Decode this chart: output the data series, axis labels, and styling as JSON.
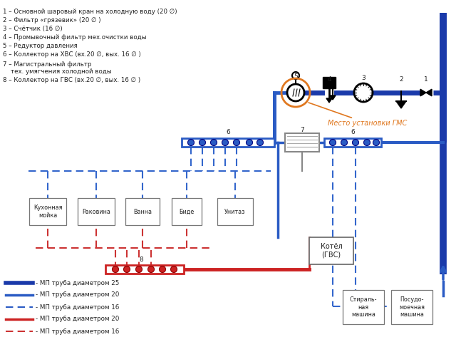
{
  "blue_thick": "#1a3aaa",
  "blue_mid": "#2a5bc4",
  "blue_dash": "#3366cc",
  "red_solid": "#cc2222",
  "red_dash": "#cc3333",
  "orange": "#e07820",
  "black": "#111111",
  "gray": "#666666",
  "white": "#ffffff",
  "text_color": "#222222",
  "labels_left": [
    "1 – Основной шаровый кран на холодную воду (20 ∅)",
    "2 – Фильтр «грязевик» (20 ∅ )",
    "3 – Счётчик (16 ∅)",
    "4 – Промывочный фильтр мех.очистки воды",
    "5 – Редуктор давления",
    "6 – Коллектор на ХВС (вх.20 ∅, вых. 16 ∅ )",
    "7 – Магистральный фильтр",
    "    тех. умягчения холодной воды",
    "8 – Коллектор на ГВС (вх.20 ∅, вых. 16 ∅ )"
  ],
  "legend_items": [
    {
      "label": "- МП труба диаметром 25",
      "color": "#1a3aaa",
      "lw": 4,
      "style": "solid"
    },
    {
      "label": "- МП труба диаметром 20",
      "color": "#2a5bc4",
      "lw": 2.5,
      "style": "solid"
    },
    {
      "label": "- МП труба диаметром 16",
      "color": "#2a5bc4",
      "lw": 1.5,
      "style": "dashed"
    },
    {
      "label": "- МП труба диаметром 20",
      "color": "#cc2222",
      "lw": 2.5,
      "style": "solid"
    },
    {
      "label": "- МП труба диаметром 16",
      "color": "#cc2222",
      "lw": 1.5,
      "style": "dashed"
    }
  ]
}
